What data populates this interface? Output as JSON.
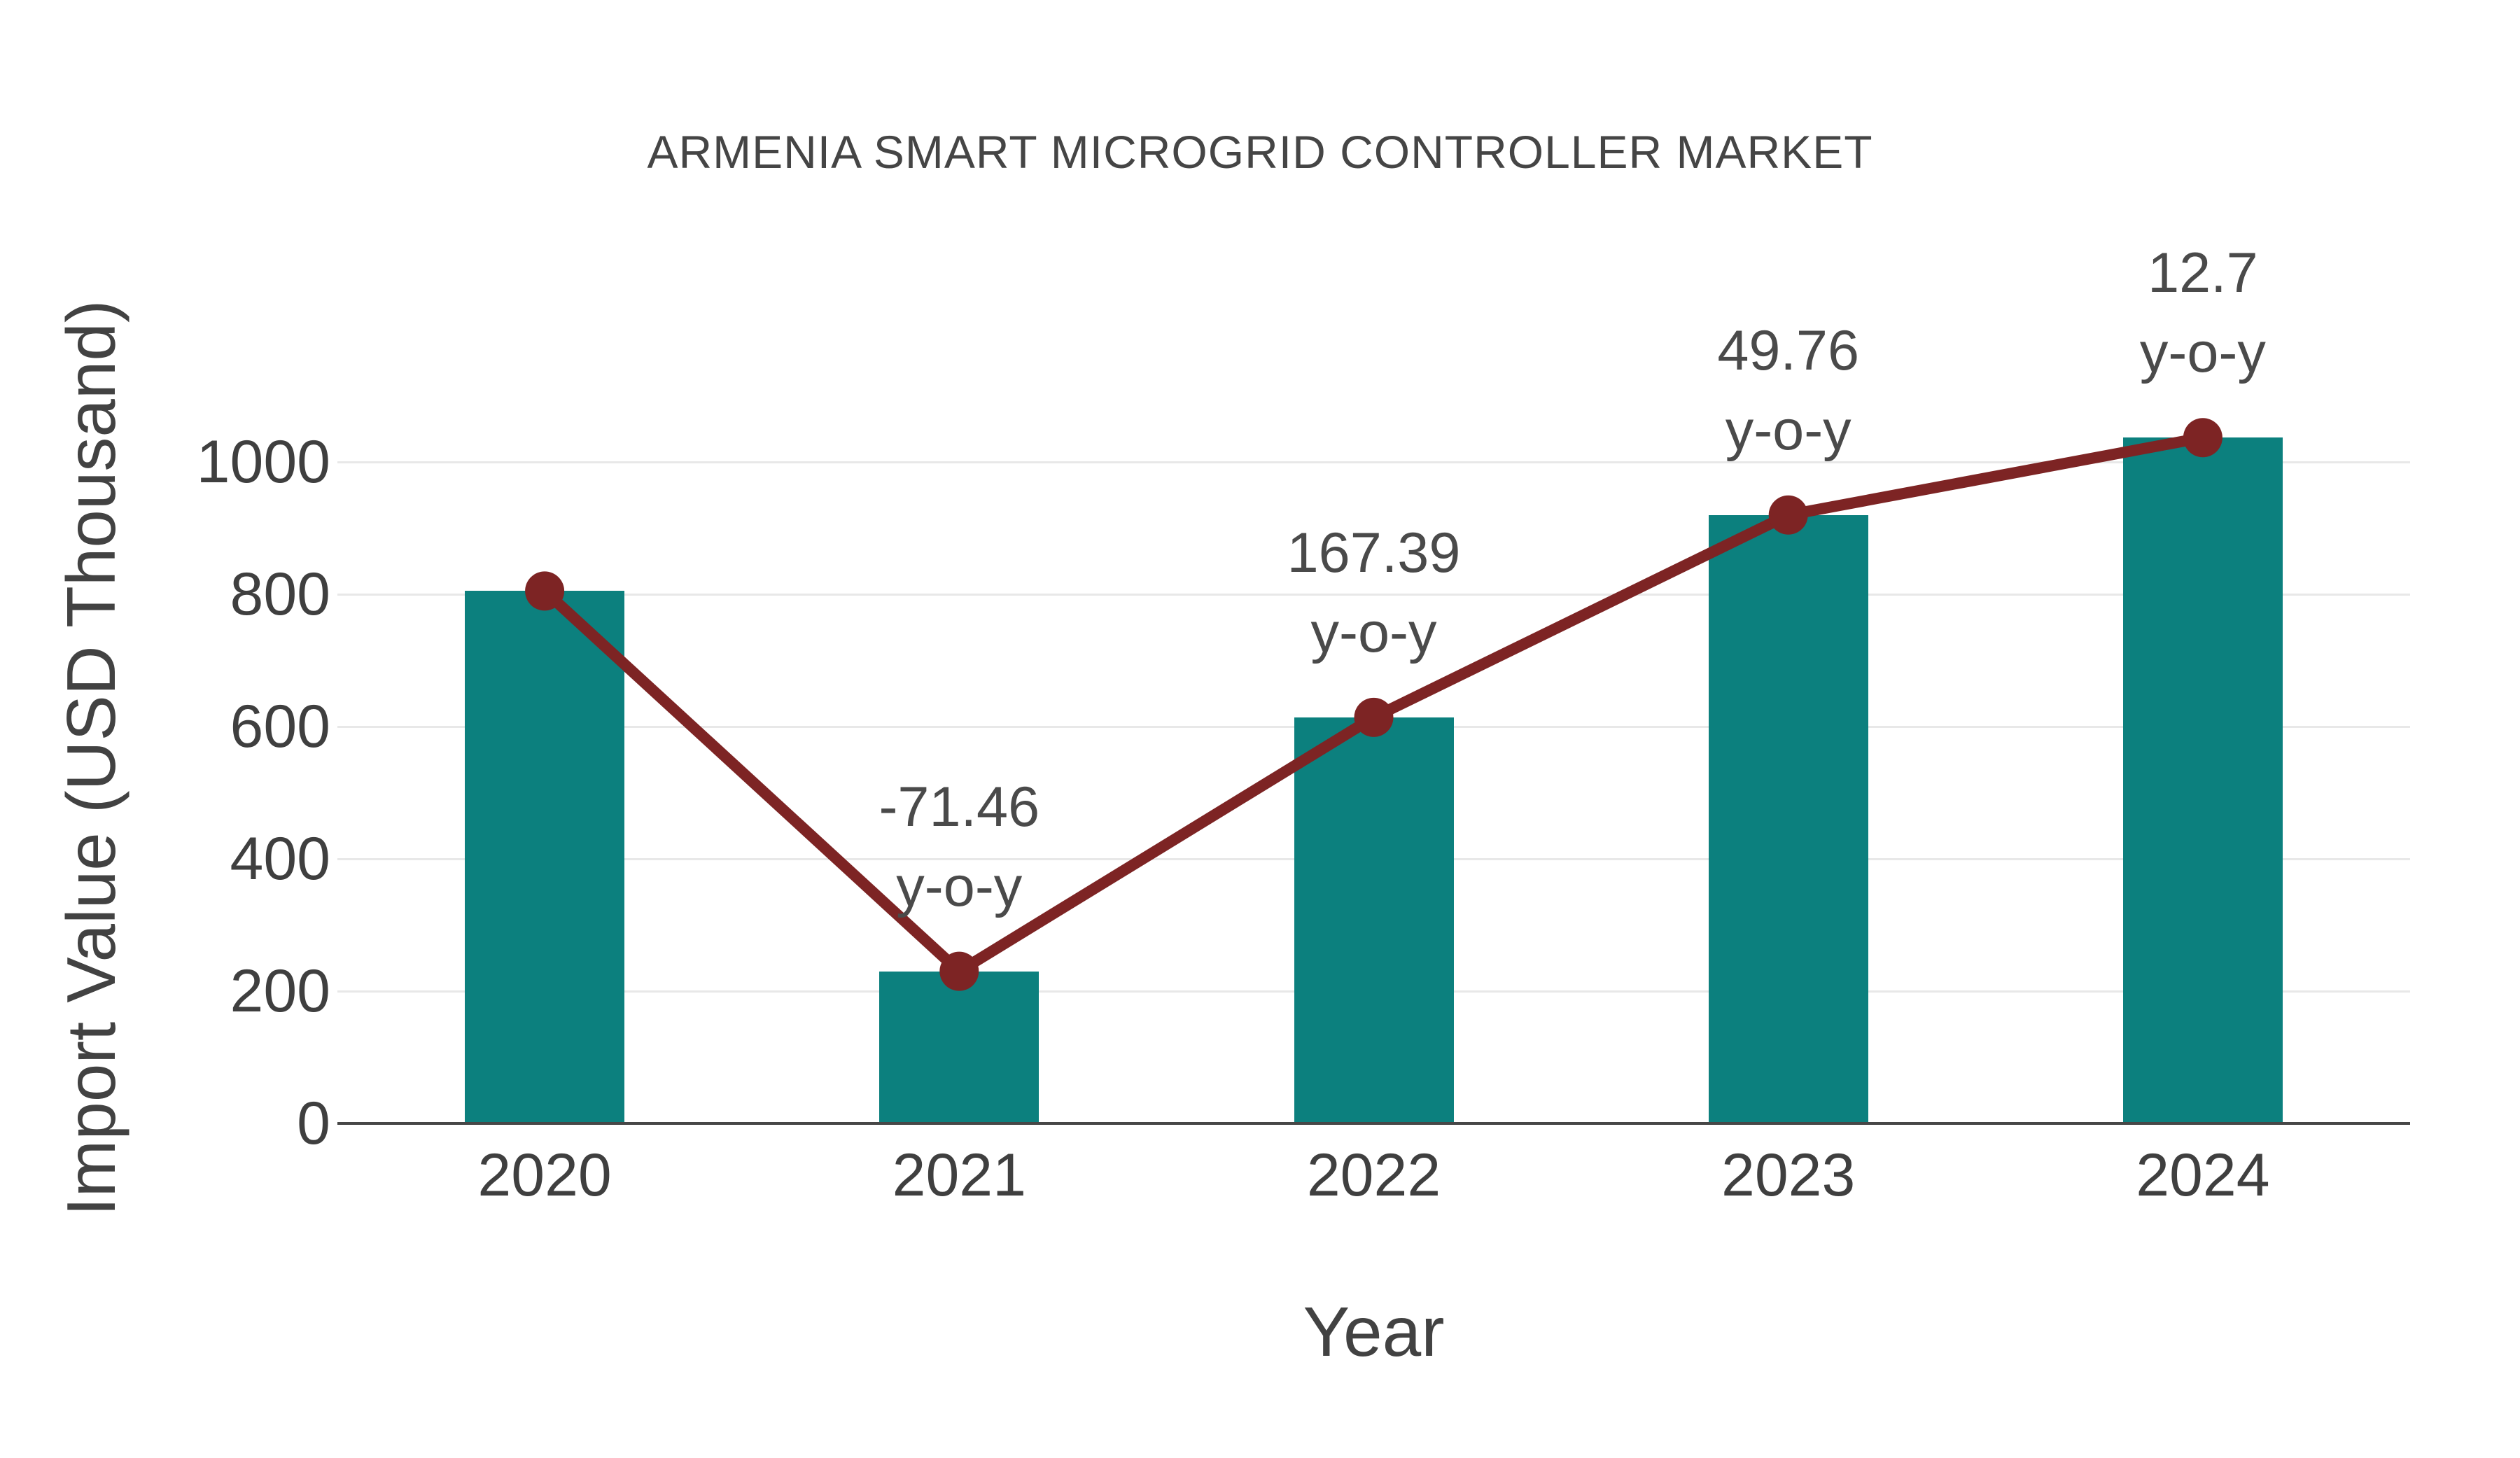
{
  "chart_data": {
    "type": "bar+line",
    "title": "ARMENIA SMART MICROGRID CONTROLLER MARKET",
    "xlabel": "Year",
    "ylabel": "Import Value (USD Thousand)",
    "categories": [
      "2020",
      "2021",
      "2022",
      "2023",
      "2024"
    ],
    "series": [
      {
        "name": "Import Value (USD Thousand)",
        "type": "bar",
        "values": [
          805,
          230,
          614,
          920,
          1037
        ]
      },
      {
        "name": "Import Value trend",
        "type": "line",
        "values": [
          805,
          230,
          614,
          920,
          1037
        ]
      }
    ],
    "annotations": [
      {
        "category": "2021",
        "value": "-71.46",
        "suffix": "y-o-y"
      },
      {
        "category": "2022",
        "value": "167.39",
        "suffix": "y-o-y"
      },
      {
        "category": "2023",
        "value": "49.76",
        "suffix": "y-o-y"
      },
      {
        "category": "2024",
        "value": "12.7",
        "suffix": "y-o-y"
      }
    ],
    "yticks": [
      0,
      200,
      400,
      600,
      800,
      1000
    ],
    "ylim": [
      0,
      1106
    ],
    "grid": true,
    "legend": false,
    "colors": {
      "bar": "#0c807e",
      "line": "#7d2424",
      "marker": "#7d2424",
      "grid": "#e8e8e8",
      "axis": "#474747",
      "tick_text": "#3f3f3f",
      "annotation_text": "#4a4a4a",
      "title_text": "#454545",
      "background": "#ffffff"
    }
  }
}
